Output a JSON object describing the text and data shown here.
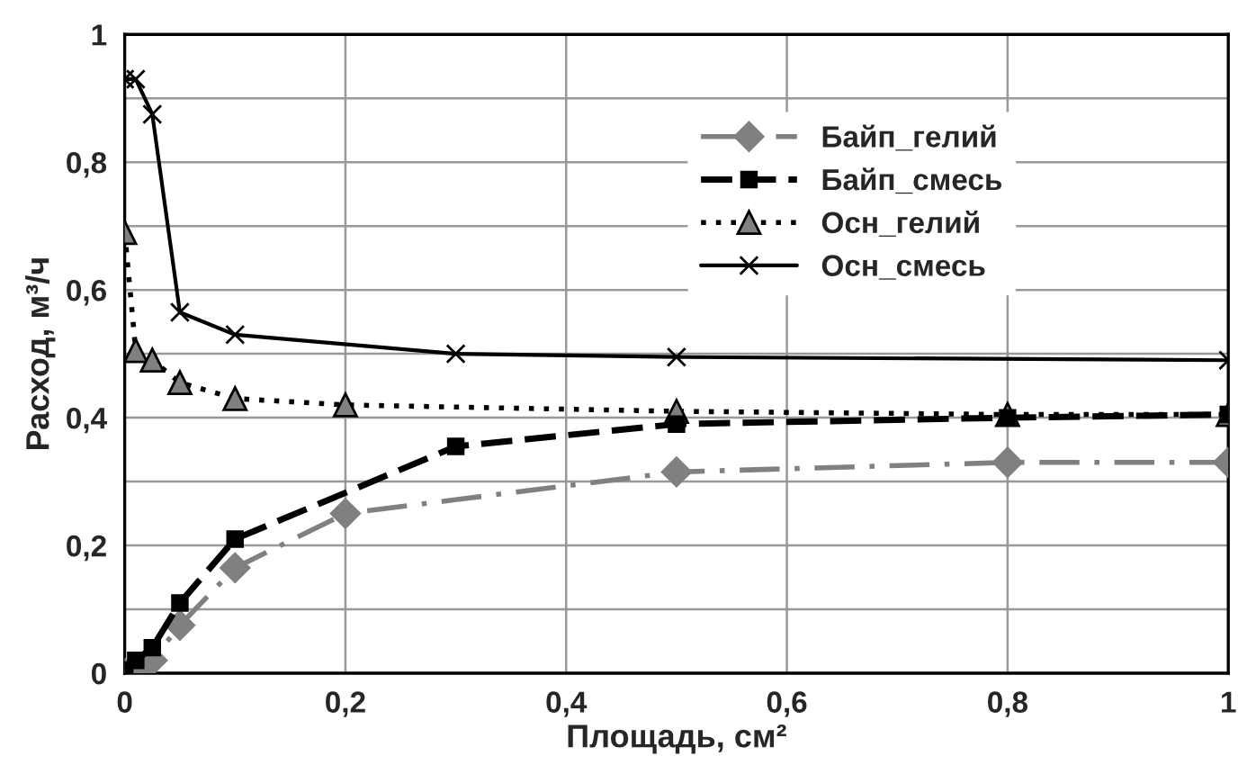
{
  "chart_data": {
    "type": "line",
    "xlabel": "Площадь, см²",
    "ylabel": "Расход, м³/ч",
    "xlim": [
      0,
      1
    ],
    "ylim": [
      0,
      1
    ],
    "xticks": [
      {
        "value": 0,
        "label": "0"
      },
      {
        "value": 0.2,
        "label": "0,2"
      },
      {
        "value": 0.4,
        "label": "0,4"
      },
      {
        "value": 0.6,
        "label": "0,6"
      },
      {
        "value": 0.8,
        "label": "0,8"
      },
      {
        "value": 1,
        "label": "1"
      }
    ],
    "yticks": [
      {
        "value": 0,
        "label": "0"
      },
      {
        "value": 0.1,
        "label": null
      },
      {
        "value": 0.2,
        "label": "0,2"
      },
      {
        "value": 0.3,
        "label": null
      },
      {
        "value": 0.4,
        "label": "0,4"
      },
      {
        "value": 0.5,
        "label": null
      },
      {
        "value": 0.6,
        "label": "0,6"
      },
      {
        "value": 0.7,
        "label": null
      },
      {
        "value": 0.8,
        "label": "0,8"
      },
      {
        "value": 0.9,
        "label": null
      },
      {
        "value": 1,
        "label": "1"
      }
    ],
    "grid": true,
    "legend": "top right",
    "series": [
      {
        "name": "Байп_гелий",
        "color": "#808080",
        "marker": "diamond",
        "line_style": "dashdot",
        "x": [
          0,
          0.01,
          0.025,
          0.05,
          0.1,
          0.2,
          0.5,
          0.8,
          1
        ],
        "values": [
          0,
          0.005,
          0.02,
          0.075,
          0.165,
          0.25,
          0.315,
          0.33,
          0.33
        ]
      },
      {
        "name": "Байп_смесь",
        "color": "#000000",
        "marker": "square",
        "line_style": "dashed",
        "x": [
          0,
          0.01,
          0.025,
          0.05,
          0.1,
          0.3,
          0.5,
          0.8,
          1
        ],
        "values": [
          0.005,
          0.02,
          0.04,
          0.11,
          0.21,
          0.355,
          0.39,
          0.4,
          0.405
        ]
      },
      {
        "name": "Осн_гелий",
        "color": "#000000",
        "marker": "triangle",
        "line_style": "dotted",
        "x": [
          0,
          0.01,
          0.025,
          0.05,
          0.1,
          0.2,
          0.5,
          0.8,
          1
        ],
        "values": [
          0.69,
          0.505,
          0.49,
          0.455,
          0.43,
          0.42,
          0.41,
          0.405,
          0.405
        ]
      },
      {
        "name": "Осн_смесь",
        "color": "#000000",
        "marker": "cross",
        "line_style": "solid",
        "x": [
          0,
          0.01,
          0.025,
          0.05,
          0.1,
          0.3,
          0.5,
          1
        ],
        "values": [
          0.93,
          0.93,
          0.875,
          0.565,
          0.53,
          0.5,
          0.495,
          0.49
        ]
      }
    ]
  }
}
